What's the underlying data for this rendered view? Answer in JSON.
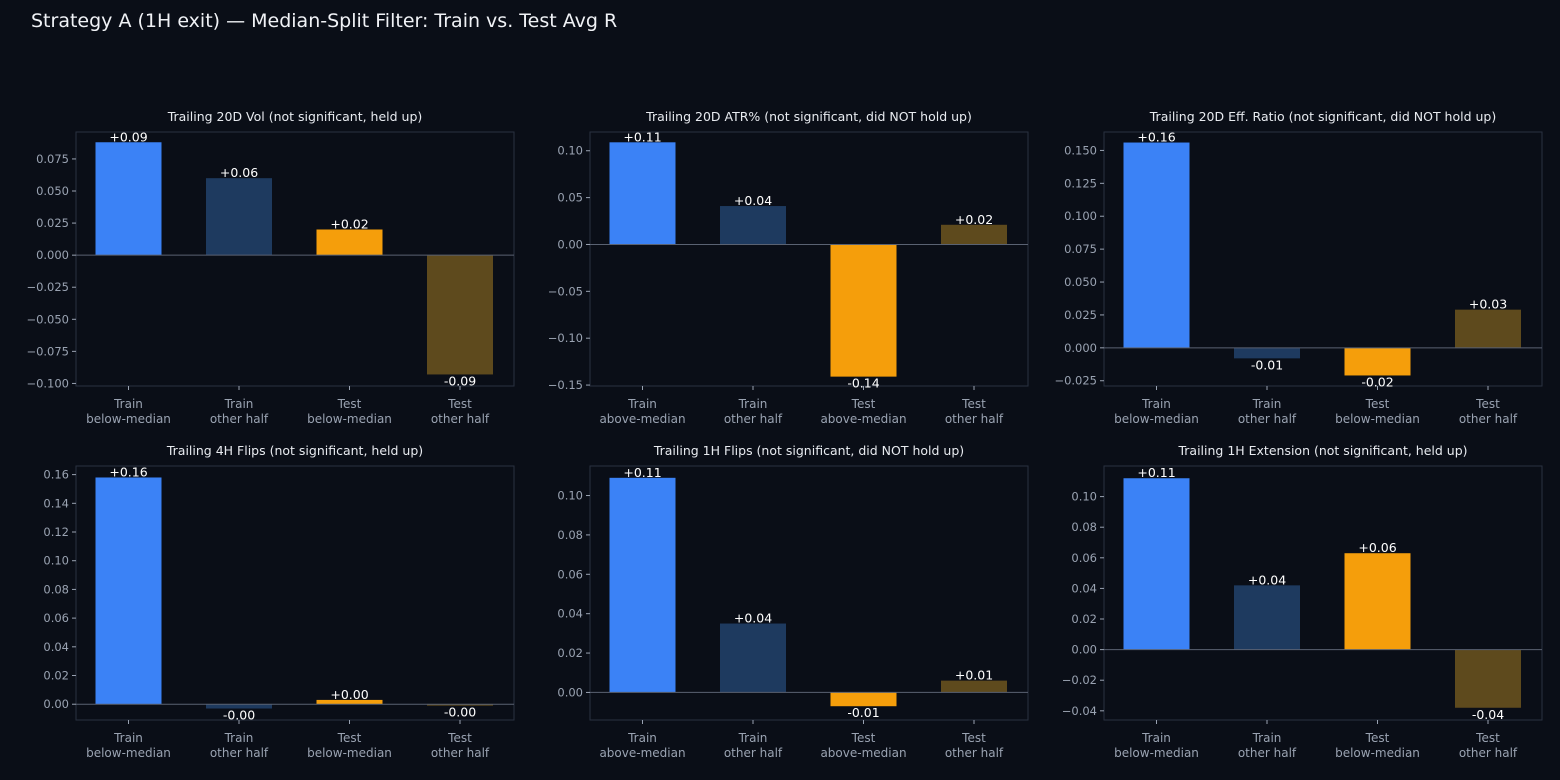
{
  "figure": {
    "title": "Strategy A (1H exit) — Median-Split Filter: Train vs. Test Avg R"
  },
  "colors": {
    "background": "#0a0e17",
    "axes_frame": "#2a3140",
    "zero_line": "#5a6272",
    "tick_text": "#9aa3b2",
    "title_text": "#e8ebf0",
    "train_median": "#3b82f6",
    "train_other": "#1e3a5f",
    "test_median": "#f59e0b",
    "test_other": "#5e4a1d"
  },
  "chart_data": [
    {
      "type": "bar",
      "title": "Trailing 20D Vol (not significant, held up)",
      "categories": [
        "Train\nbelow-median",
        "Train\nother half",
        "Test\nbelow-median",
        "Test\nother half"
      ],
      "values": [
        0.088,
        0.06,
        0.02,
        -0.093
      ],
      "data_labels": [
        "+0.09",
        "+0.06",
        "+0.02",
        "-0.09"
      ],
      "ylim": [
        -0.102,
        0.096
      ],
      "yticks": [
        -0.1,
        -0.075,
        -0.05,
        -0.025,
        0.0,
        0.025,
        0.05,
        0.075
      ],
      "ytick_labels": [
        "−0.100",
        "−0.075",
        "−0.050",
        "−0.025",
        "0.000",
        "0.025",
        "0.050",
        "0.075"
      ],
      "grid": false,
      "xlabel": "",
      "ylabel": ""
    },
    {
      "type": "bar",
      "title": "Trailing 20D ATR% (not significant, did NOT hold up)",
      "categories": [
        "Train\nabove-median",
        "Train\nother half",
        "Test\nabove-median",
        "Test\nother half"
      ],
      "values": [
        0.109,
        0.041,
        -0.141,
        0.021
      ],
      "data_labels": [
        "+0.11",
        "+0.04",
        "-0.14",
        "+0.02"
      ],
      "ylim": [
        -0.151,
        0.12
      ],
      "yticks": [
        -0.15,
        -0.1,
        -0.05,
        0.0,
        0.05,
        0.1
      ],
      "ytick_labels": [
        "−0.15",
        "−0.10",
        "−0.05",
        "0.00",
        "0.05",
        "0.10"
      ],
      "grid": false,
      "xlabel": "",
      "ylabel": ""
    },
    {
      "type": "bar",
      "title": "Trailing 20D Eff. Ratio (not significant, did NOT hold up)",
      "categories": [
        "Train\nbelow-median",
        "Train\nother half",
        "Test\nbelow-median",
        "Test\nother half"
      ],
      "values": [
        0.156,
        -0.008,
        -0.021,
        0.029
      ],
      "data_labels": [
        "+0.16",
        "-0.01",
        "-0.02",
        "+0.03"
      ],
      "ylim": [
        -0.029,
        0.164
      ],
      "yticks": [
        -0.025,
        0.0,
        0.025,
        0.05,
        0.075,
        0.1,
        0.125,
        0.15
      ],
      "ytick_labels": [
        "−0.025",
        "0.000",
        "0.025",
        "0.050",
        "0.075",
        "0.100",
        "0.125",
        "0.150"
      ],
      "grid": false,
      "xlabel": "",
      "ylabel": ""
    },
    {
      "type": "bar",
      "title": "Trailing 4H Flips (not significant, held up)",
      "categories": [
        "Train\nbelow-median",
        "Train\nother half",
        "Test\nbelow-median",
        "Test\nother half"
      ],
      "values": [
        0.158,
        -0.003,
        0.003,
        -0.001
      ],
      "data_labels": [
        "+0.16",
        "-0.00",
        "+0.00",
        "-0.00"
      ],
      "ylim": [
        -0.011,
        0.166
      ],
      "yticks": [
        0.0,
        0.02,
        0.04,
        0.06,
        0.08,
        0.1,
        0.12,
        0.14,
        0.16
      ],
      "ytick_labels": [
        "0.00",
        "0.02",
        "0.04",
        "0.06",
        "0.08",
        "0.10",
        "0.12",
        "0.14",
        "0.16"
      ],
      "grid": false,
      "xlabel": "",
      "ylabel": ""
    },
    {
      "type": "bar",
      "title": "Trailing 1H Flips (not significant, did NOT hold up)",
      "categories": [
        "Train\nabove-median",
        "Train\nother half",
        "Test\nabove-median",
        "Test\nother half"
      ],
      "values": [
        0.109,
        0.035,
        -0.007,
        0.006
      ],
      "data_labels": [
        "+0.11",
        "+0.04",
        "-0.01",
        "+0.01"
      ],
      "ylim": [
        -0.014,
        0.115
      ],
      "yticks": [
        0.0,
        0.02,
        0.04,
        0.06,
        0.08,
        0.1
      ],
      "ytick_labels": [
        "0.00",
        "0.02",
        "0.04",
        "0.06",
        "0.08",
        "0.10"
      ],
      "grid": false,
      "xlabel": "",
      "ylabel": ""
    },
    {
      "type": "bar",
      "title": "Trailing 1H Extension (not significant, held up)",
      "categories": [
        "Train\nbelow-median",
        "Train\nother half",
        "Test\nbelow-median",
        "Test\nother half"
      ],
      "values": [
        0.112,
        0.042,
        0.063,
        -0.038
      ],
      "data_labels": [
        "+0.11",
        "+0.04",
        "+0.06",
        "-0.04"
      ],
      "ylim": [
        -0.046,
        0.12
      ],
      "yticks": [
        -0.04,
        -0.02,
        0.0,
        0.02,
        0.04,
        0.06,
        0.08,
        0.1
      ],
      "ytick_labels": [
        "−0.04",
        "−0.02",
        "0.00",
        "0.02",
        "0.04",
        "0.06",
        "0.08",
        "0.10"
      ],
      "grid": false,
      "xlabel": "",
      "ylabel": ""
    }
  ]
}
